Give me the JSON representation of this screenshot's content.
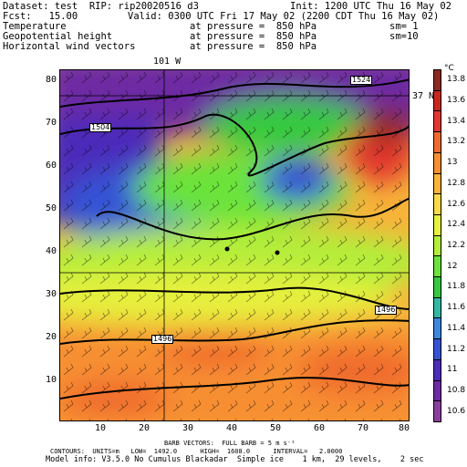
{
  "header": {
    "line1_left": "Dataset: test  RIP: rip20020516 d3",
    "line1_right": "Init: 1200 UTC Thu 16 May 02",
    "line2_left": "Fcst:   15.00",
    "line2_right": "Valid: 0300 UTC Fri 17 May 02 (2200 CDT Thu 16 May 02)",
    "fields": [
      {
        "name": "Temperature",
        "level": "at pressure =  850 hPa",
        "sm": "sm= 1"
      },
      {
        "name": "Geopotential height",
        "level": "at pressure =  850 hPa",
        "sm": "sm=10"
      },
      {
        "name": "Horizontal wind vectors",
        "level": "at pressure =  850 hPa",
        "sm": ""
      }
    ]
  },
  "map": {
    "lon_label": "101 W",
    "lat_label": "37 N",
    "x_ticks": [
      "10",
      "20",
      "30",
      "40",
      "50",
      "60",
      "70",
      "80"
    ],
    "y_ticks": [
      "10",
      "20",
      "30",
      "40",
      "50",
      "60",
      "70",
      "80"
    ],
    "contour_labels": [
      "1524",
      "1504",
      "1496",
      "1496"
    ]
  },
  "legend": {
    "unit": "°C",
    "levels": [
      "13.8",
      "13.6",
      "13.4",
      "13.2",
      "13",
      "12.8",
      "12.6",
      "12.4",
      "12.2",
      "12",
      "11.8",
      "11.6",
      "11.4",
      "11.2",
      "11",
      "10.8",
      "10.6"
    ],
    "colors": [
      "#8b2a1f",
      "#c8271e",
      "#e2372e",
      "#f06a2d",
      "#f78f31",
      "#fbb43b",
      "#f9d94a",
      "#e6f03e",
      "#b3ee3a",
      "#6be33a",
      "#35c93f",
      "#33b8a5",
      "#3a88df",
      "#3652d4",
      "#4c2cba",
      "#6d2aa3",
      "#8a3f9e"
    ]
  },
  "footer": {
    "barb_line": "BARB VECTORS:  FULL BARB = 5 m s⁻¹",
    "contours_line": "CONTOURS:  UNITS=m   LOW=  1492.0      HIGH=  1608.0      INTERVAL=   2.0000",
    "model_line": "Model info: V3.5.0 No Cumulus Blackadar  Simple ice    1 km,  29 levels,    2 sec"
  }
}
